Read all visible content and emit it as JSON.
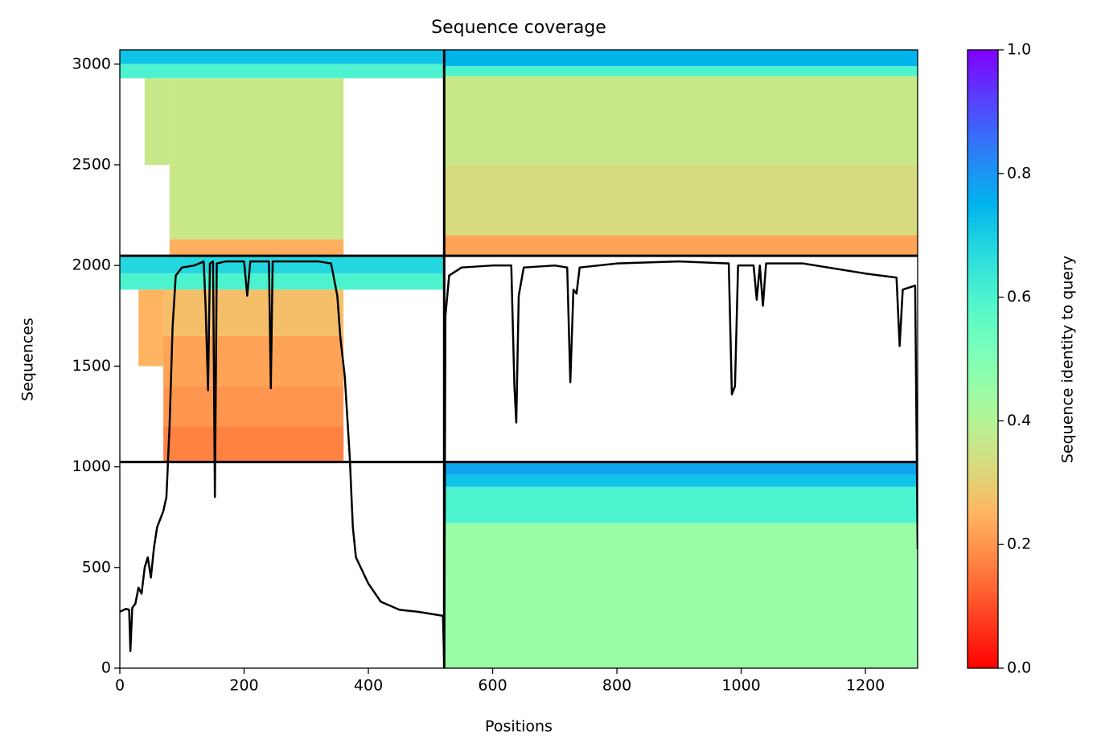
{
  "chart_data": {
    "type": "coverage",
    "title": "Sequence coverage",
    "xlabel": "Positions",
    "ylabel": "Sequences",
    "colorbar_label": "Sequence identity to query",
    "colormap": "rainbow_r",
    "xlim": [
      0,
      1284
    ],
    "ylim": [
      0,
      3071
    ],
    "xticks": [
      0,
      200,
      400,
      600,
      800,
      1000,
      1200
    ],
    "yticks": [
      0,
      500,
      1000,
      1500,
      2000,
      2500,
      3000
    ],
    "clim": [
      0,
      1
    ],
    "cticks": [
      {
        "value": 0,
        "label": "0.0"
      },
      0.2,
      0.4,
      0.6,
      0.8,
      {
        "value": 1,
        "label": "1.0"
      }
    ],
    "chain_breaks_x": [
      522
    ],
    "group_breaks_y": [
      1024,
      2048
    ],
    "blocks": [
      {
        "x0": 0,
        "x1": 522,
        "y0": 3000,
        "y1": 3071,
        "identity": 0.72
      },
      {
        "x0": 0,
        "x1": 522,
        "y0": 2930,
        "y1": 3000,
        "identity": 0.6
      },
      {
        "x0": 40,
        "x1": 80,
        "y0": 2500,
        "y1": 2930,
        "identity": 0.36
      },
      {
        "x0": 80,
        "x1": 360,
        "y0": 2130,
        "y1": 2930,
        "identity": 0.36
      },
      {
        "x0": 80,
        "x1": 360,
        "y0": 2048,
        "y1": 2130,
        "identity": 0.24
      },
      {
        "x0": 522,
        "x1": 1284,
        "y0": 2990,
        "y1": 3071,
        "identity": 0.75
      },
      {
        "x0": 522,
        "x1": 1284,
        "y0": 2940,
        "y1": 2990,
        "identity": 0.6
      },
      {
        "x0": 522,
        "x1": 1284,
        "y0": 2500,
        "y1": 2940,
        "identity": 0.36
      },
      {
        "x0": 522,
        "x1": 1284,
        "y0": 2150,
        "y1": 2500,
        "identity": 0.33
      },
      {
        "x0": 522,
        "x1": 1284,
        "y0": 2048,
        "y1": 2150,
        "identity": 0.22
      },
      {
        "x0": 0,
        "x1": 522,
        "y0": 1960,
        "y1": 2048,
        "identity": 0.68
      },
      {
        "x0": 0,
        "x1": 522,
        "y0": 1880,
        "y1": 1960,
        "identity": 0.6
      },
      {
        "x0": 30,
        "x1": 70,
        "y0": 1500,
        "y1": 1880,
        "identity": 0.25
      },
      {
        "x0": 70,
        "x1": 360,
        "y0": 1650,
        "y1": 1880,
        "identity": 0.27
      },
      {
        "x0": 70,
        "x1": 360,
        "y0": 1400,
        "y1": 1650,
        "identity": 0.22
      },
      {
        "x0": 70,
        "x1": 360,
        "y0": 1200,
        "y1": 1400,
        "identity": 0.2
      },
      {
        "x0": 70,
        "x1": 360,
        "y0": 1024,
        "y1": 1200,
        "identity": 0.17
      },
      {
        "x0": 522,
        "x1": 1284,
        "y0": 960,
        "y1": 1024,
        "identity": 0.78
      },
      {
        "x0": 522,
        "x1": 1284,
        "y0": 900,
        "y1": 960,
        "identity": 0.72
      },
      {
        "x0": 522,
        "x1": 1284,
        "y0": 720,
        "y1": 900,
        "identity": 0.6
      },
      {
        "x0": 522,
        "x1": 1284,
        "y0": 0,
        "y1": 720,
        "identity": 0.45
      }
    ],
    "coverage": {
      "color": "#000000",
      "x": [
        0,
        10,
        15,
        17,
        20,
        25,
        30,
        35,
        40,
        45,
        50,
        55,
        60,
        65,
        70,
        75,
        80,
        85,
        90,
        100,
        120,
        135,
        138,
        142,
        145,
        150,
        153,
        156,
        170,
        200,
        205,
        210,
        240,
        243,
        246,
        280,
        320,
        340,
        350,
        355,
        362,
        370,
        375,
        380,
        400,
        420,
        450,
        480,
        500,
        520,
        522,
        524,
        530,
        550,
        600,
        630,
        635,
        638,
        642,
        650,
        700,
        720,
        725,
        730,
        735,
        740,
        800,
        900,
        980,
        985,
        990,
        995,
        1020,
        1025,
        1030,
        1035,
        1040,
        1100,
        1200,
        1250,
        1255,
        1260,
        1280,
        1284
      ],
      "values": [
        280,
        295,
        290,
        85,
        300,
        320,
        400,
        370,
        500,
        550,
        450,
        600,
        700,
        740,
        780,
        850,
        1200,
        1700,
        1950,
        1990,
        2000,
        2020,
        1800,
        1380,
        2010,
        2020,
        850,
        2010,
        2020,
        2020,
        1850,
        2020,
        2020,
        1390,
        2020,
        2020,
        2020,
        2010,
        1850,
        1640,
        1450,
        1050,
        700,
        550,
        420,
        330,
        290,
        280,
        270,
        260,
        30,
        1750,
        1950,
        1990,
        2000,
        2000,
        1400,
        1220,
        1850,
        1990,
        2000,
        1990,
        1420,
        1880,
        1860,
        1990,
        2010,
        2020,
        2010,
        1360,
        1400,
        2000,
        2000,
        1830,
        2000,
        1800,
        2010,
        2010,
        1960,
        1940,
        1600,
        1880,
        1900,
        590
      ]
    }
  }
}
